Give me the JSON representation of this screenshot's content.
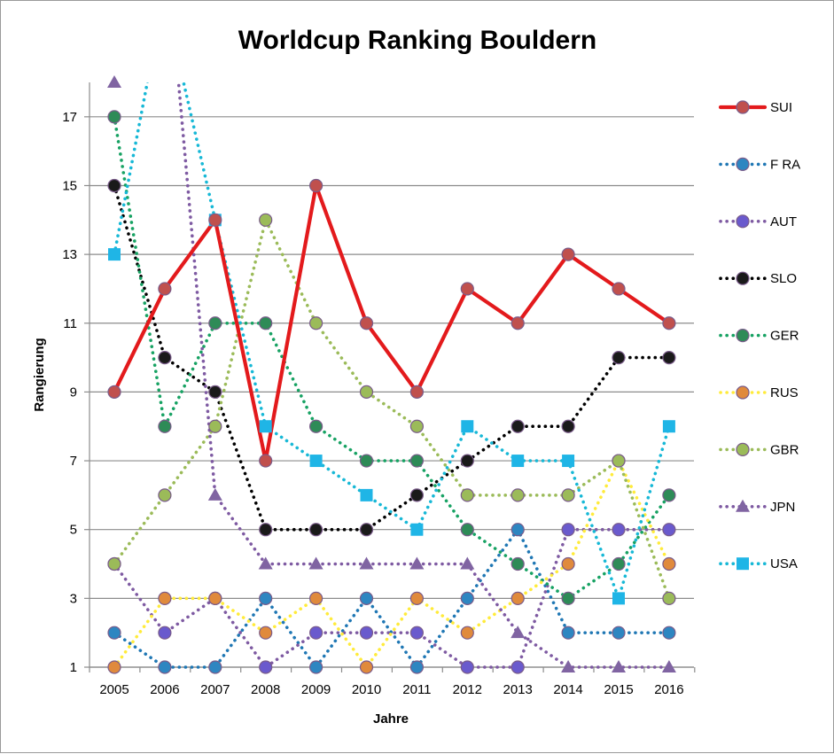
{
  "chart_data": {
    "type": "line",
    "title": "Worldcup Ranking Bouldern",
    "xlabel": "Jahre",
    "ylabel": "Rangierung",
    "x": [
      2005,
      2006,
      2007,
      2008,
      2009,
      2010,
      2011,
      2012,
      2013,
      2014,
      2015,
      2016
    ],
    "ylim": [
      1,
      18
    ],
    "yticks": [
      1,
      3,
      5,
      7,
      9,
      11,
      13,
      15,
      17
    ],
    "grid": true,
    "legend": "right",
    "series": [
      {
        "name": "SUI",
        "color": "#e31a1c",
        "marker": "circle",
        "markerColor": "#c0504d",
        "dash": "solid",
        "values": [
          9,
          12,
          14,
          7,
          15,
          11,
          9,
          12,
          11,
          13,
          12,
          11
        ]
      },
      {
        "name": "F RA",
        "color": "#1f77b4",
        "marker": "circle",
        "markerColor": "#2e86c1",
        "dash": "dotted",
        "values": [
          2,
          1,
          1,
          3,
          1,
          3,
          1,
          3,
          5,
          2,
          2,
          2
        ]
      },
      {
        "name": "AUT",
        "color": "#7e5aa2",
        "marker": "circle",
        "markerColor": "#6a5acd",
        "dash": "dotted",
        "values": [
          4,
          2,
          3,
          1,
          2,
          2,
          2,
          1,
          1,
          5,
          5,
          5
        ]
      },
      {
        "name": "SLO",
        "color": "#000000",
        "marker": "circle",
        "markerColor": "#1a1a1a",
        "dash": "dotted",
        "values": [
          15,
          10,
          9,
          5,
          5,
          5,
          6,
          7,
          8,
          8,
          10,
          10
        ]
      },
      {
        "name": "GER",
        "color": "#17a263",
        "marker": "circle",
        "markerColor": "#2e8b57",
        "dash": "dotted",
        "values": [
          17,
          8,
          11,
          11,
          8,
          7,
          7,
          5,
          4,
          3,
          4,
          6
        ]
      },
      {
        "name": "RUS",
        "color": "#ffeb3b",
        "marker": "circle",
        "markerColor": "#e08a3c",
        "dash": "dotted",
        "values": [
          1,
          3,
          3,
          2,
          3,
          1,
          3,
          2,
          3,
          4,
          7,
          4
        ]
      },
      {
        "name": "GBR",
        "color": "#9bbb59",
        "marker": "circle",
        "markerColor": "#9bbb59",
        "dash": "dotted",
        "values": [
          4,
          6,
          8,
          14,
          11,
          9,
          8,
          6,
          6,
          6,
          7,
          3
        ]
      },
      {
        "name": "JPN",
        "color": "#7e5aa2",
        "marker": "triangle",
        "markerColor": "#8064a2",
        "dash": "dotted",
        "values": [
          18,
          null,
          6,
          4,
          4,
          4,
          4,
          4,
          2,
          1,
          1,
          1
        ]
      },
      {
        "name": "USA",
        "color": "#17b8d6",
        "marker": "square",
        "markerColor": "#1fb5e6",
        "dash": "dotted",
        "values": [
          13,
          null,
          14,
          8,
          7,
          6,
          5,
          8,
          7,
          7,
          3,
          8
        ]
      }
    ]
  }
}
